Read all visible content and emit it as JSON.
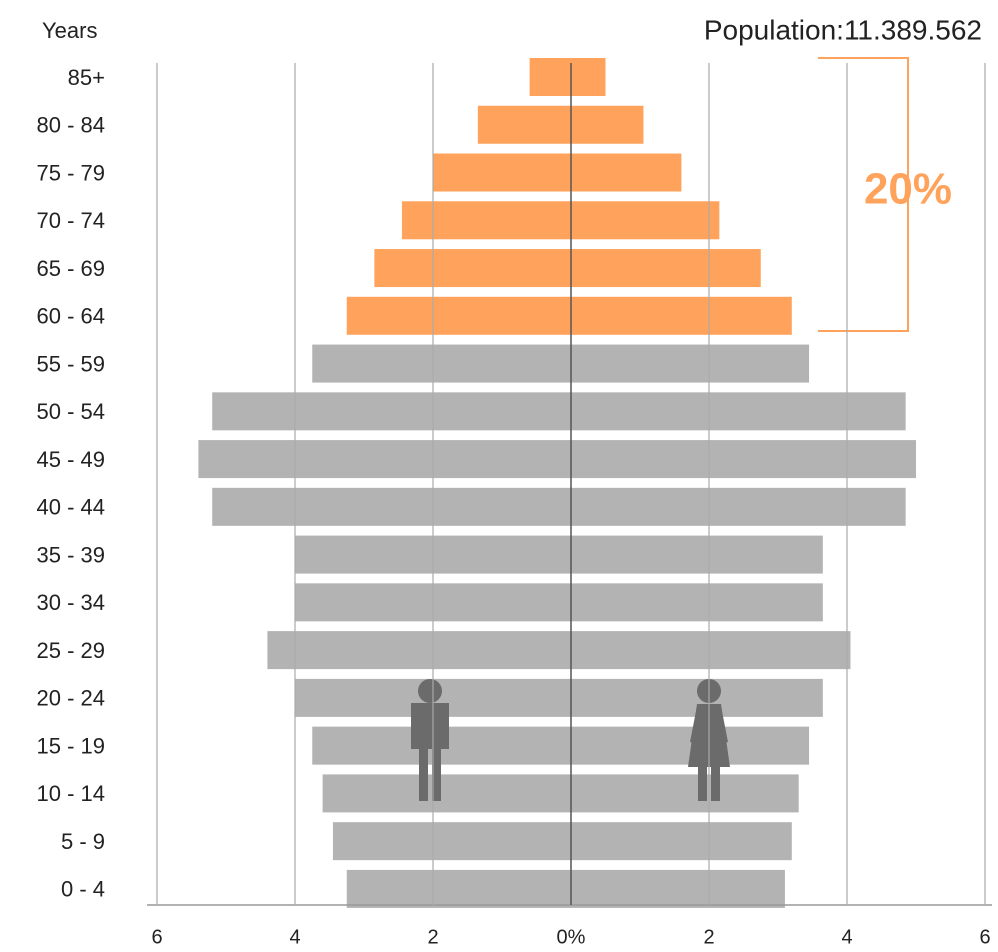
{
  "chart_data": {
    "type": "pyramid",
    "title": "Population:11.389.562",
    "y_label": "Years",
    "annotation": "20%",
    "categories": [
      "85+",
      "80 - 84",
      "75 - 79",
      "70 - 74",
      "65 - 69",
      "60 - 64",
      "55 - 59",
      "50 - 54",
      "45 - 49",
      "40 - 44",
      "35 - 39",
      "30 - 34",
      "25 - 29",
      "20 - 24",
      "15 - 19",
      "10 - 14",
      "5 - 9",
      "0 - 4"
    ],
    "bar_colors": [
      "#ffa35c",
      "#ffa35c",
      "#ffa35c",
      "#ffa35c",
      "#ffa35c",
      "#ffa35c",
      "#b3b3b3",
      "#b3b3b3",
      "#b3b3b3",
      "#b3b3b3",
      "#b3b3b3",
      "#b3b3b3",
      "#b3b3b3",
      "#b3b3b3",
      "#b3b3b3",
      "#b3b3b3",
      "#b3b3b3",
      "#b3b3b3"
    ],
    "series": [
      {
        "values": [
          -0.6,
          -1.35,
          -2.0,
          -2.45,
          -2.85,
          -3.25,
          -3.75,
          -5.2,
          -5.4,
          -5.2,
          -4.0,
          -4.0,
          -4.4,
          -4.0,
          -3.75,
          -3.6,
          -3.45,
          -3.25
        ]
      },
      {
        "values": [
          0.5,
          1.05,
          1.6,
          2.15,
          2.75,
          3.2,
          3.45,
          4.85,
          5.0,
          4.85,
          3.65,
          3.65,
          4.05,
          3.65,
          3.45,
          3.3,
          3.2,
          3.1
        ]
      }
    ],
    "xlim": [
      -6,
      6
    ],
    "xticks": [
      {
        "value": -6,
        "label": "6"
      },
      {
        "value": -4,
        "label": "4"
      },
      {
        "value": -2,
        "label": "2"
      },
      {
        "value": 0,
        "label": "0%"
      },
      2,
      4,
      6
    ],
    "grid": true
  }
}
